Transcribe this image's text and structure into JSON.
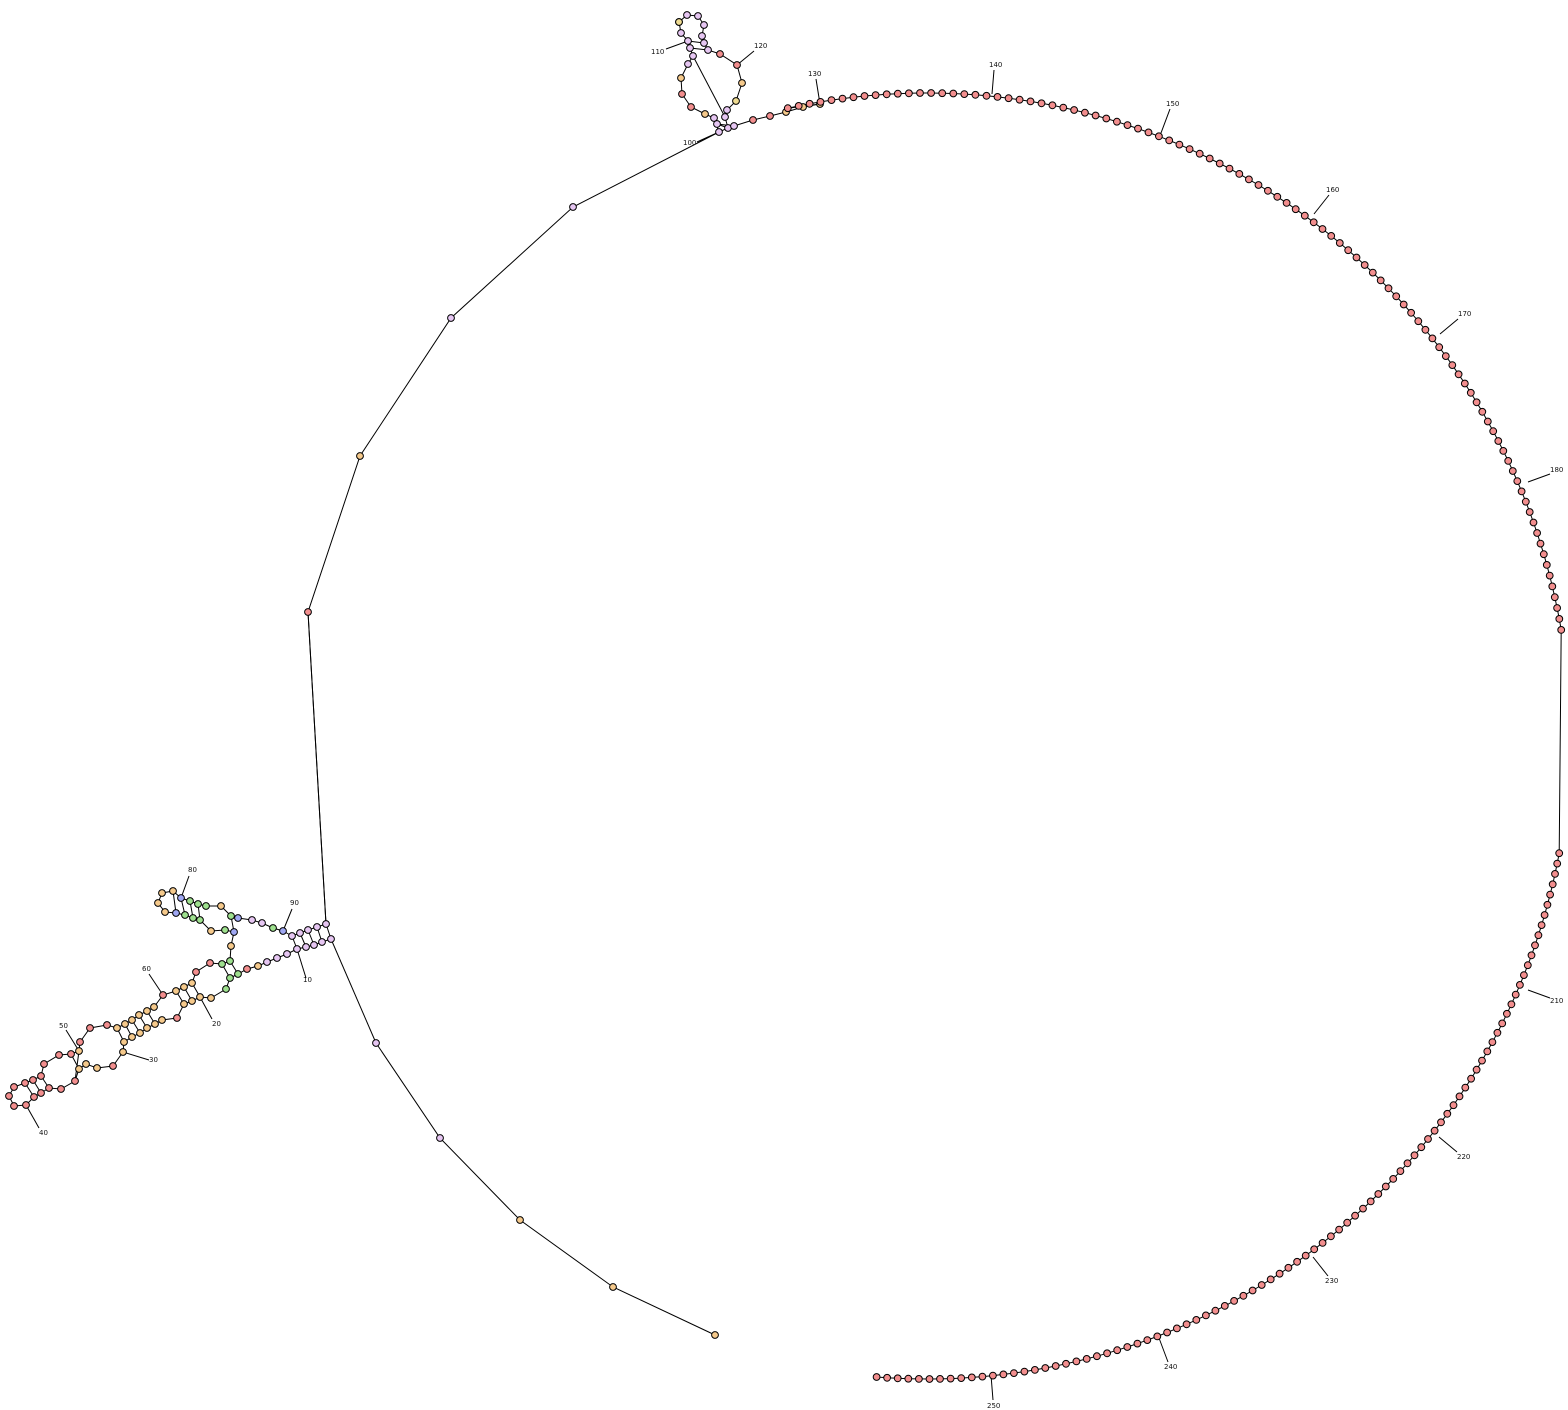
{
  "diagram": {
    "type": "rna-secondary-structure",
    "length": 251,
    "position_labels": [
      "10",
      "20",
      "30",
      "40",
      "50",
      "60",
      "80",
      "90",
      "100",
      "110",
      "120",
      "130",
      "140",
      "150",
      "160",
      "170",
      "180",
      "210",
      "220",
      "230",
      "240",
      "250"
    ],
    "colors": {
      "red": "#f28e8e",
      "orange": "#f5c98b",
      "yellow": "#eedb92",
      "green": "#9ee08e",
      "purple": "#e6c6f2",
      "blue": "#9fa7f2",
      "outline": "#000000"
    }
  }
}
